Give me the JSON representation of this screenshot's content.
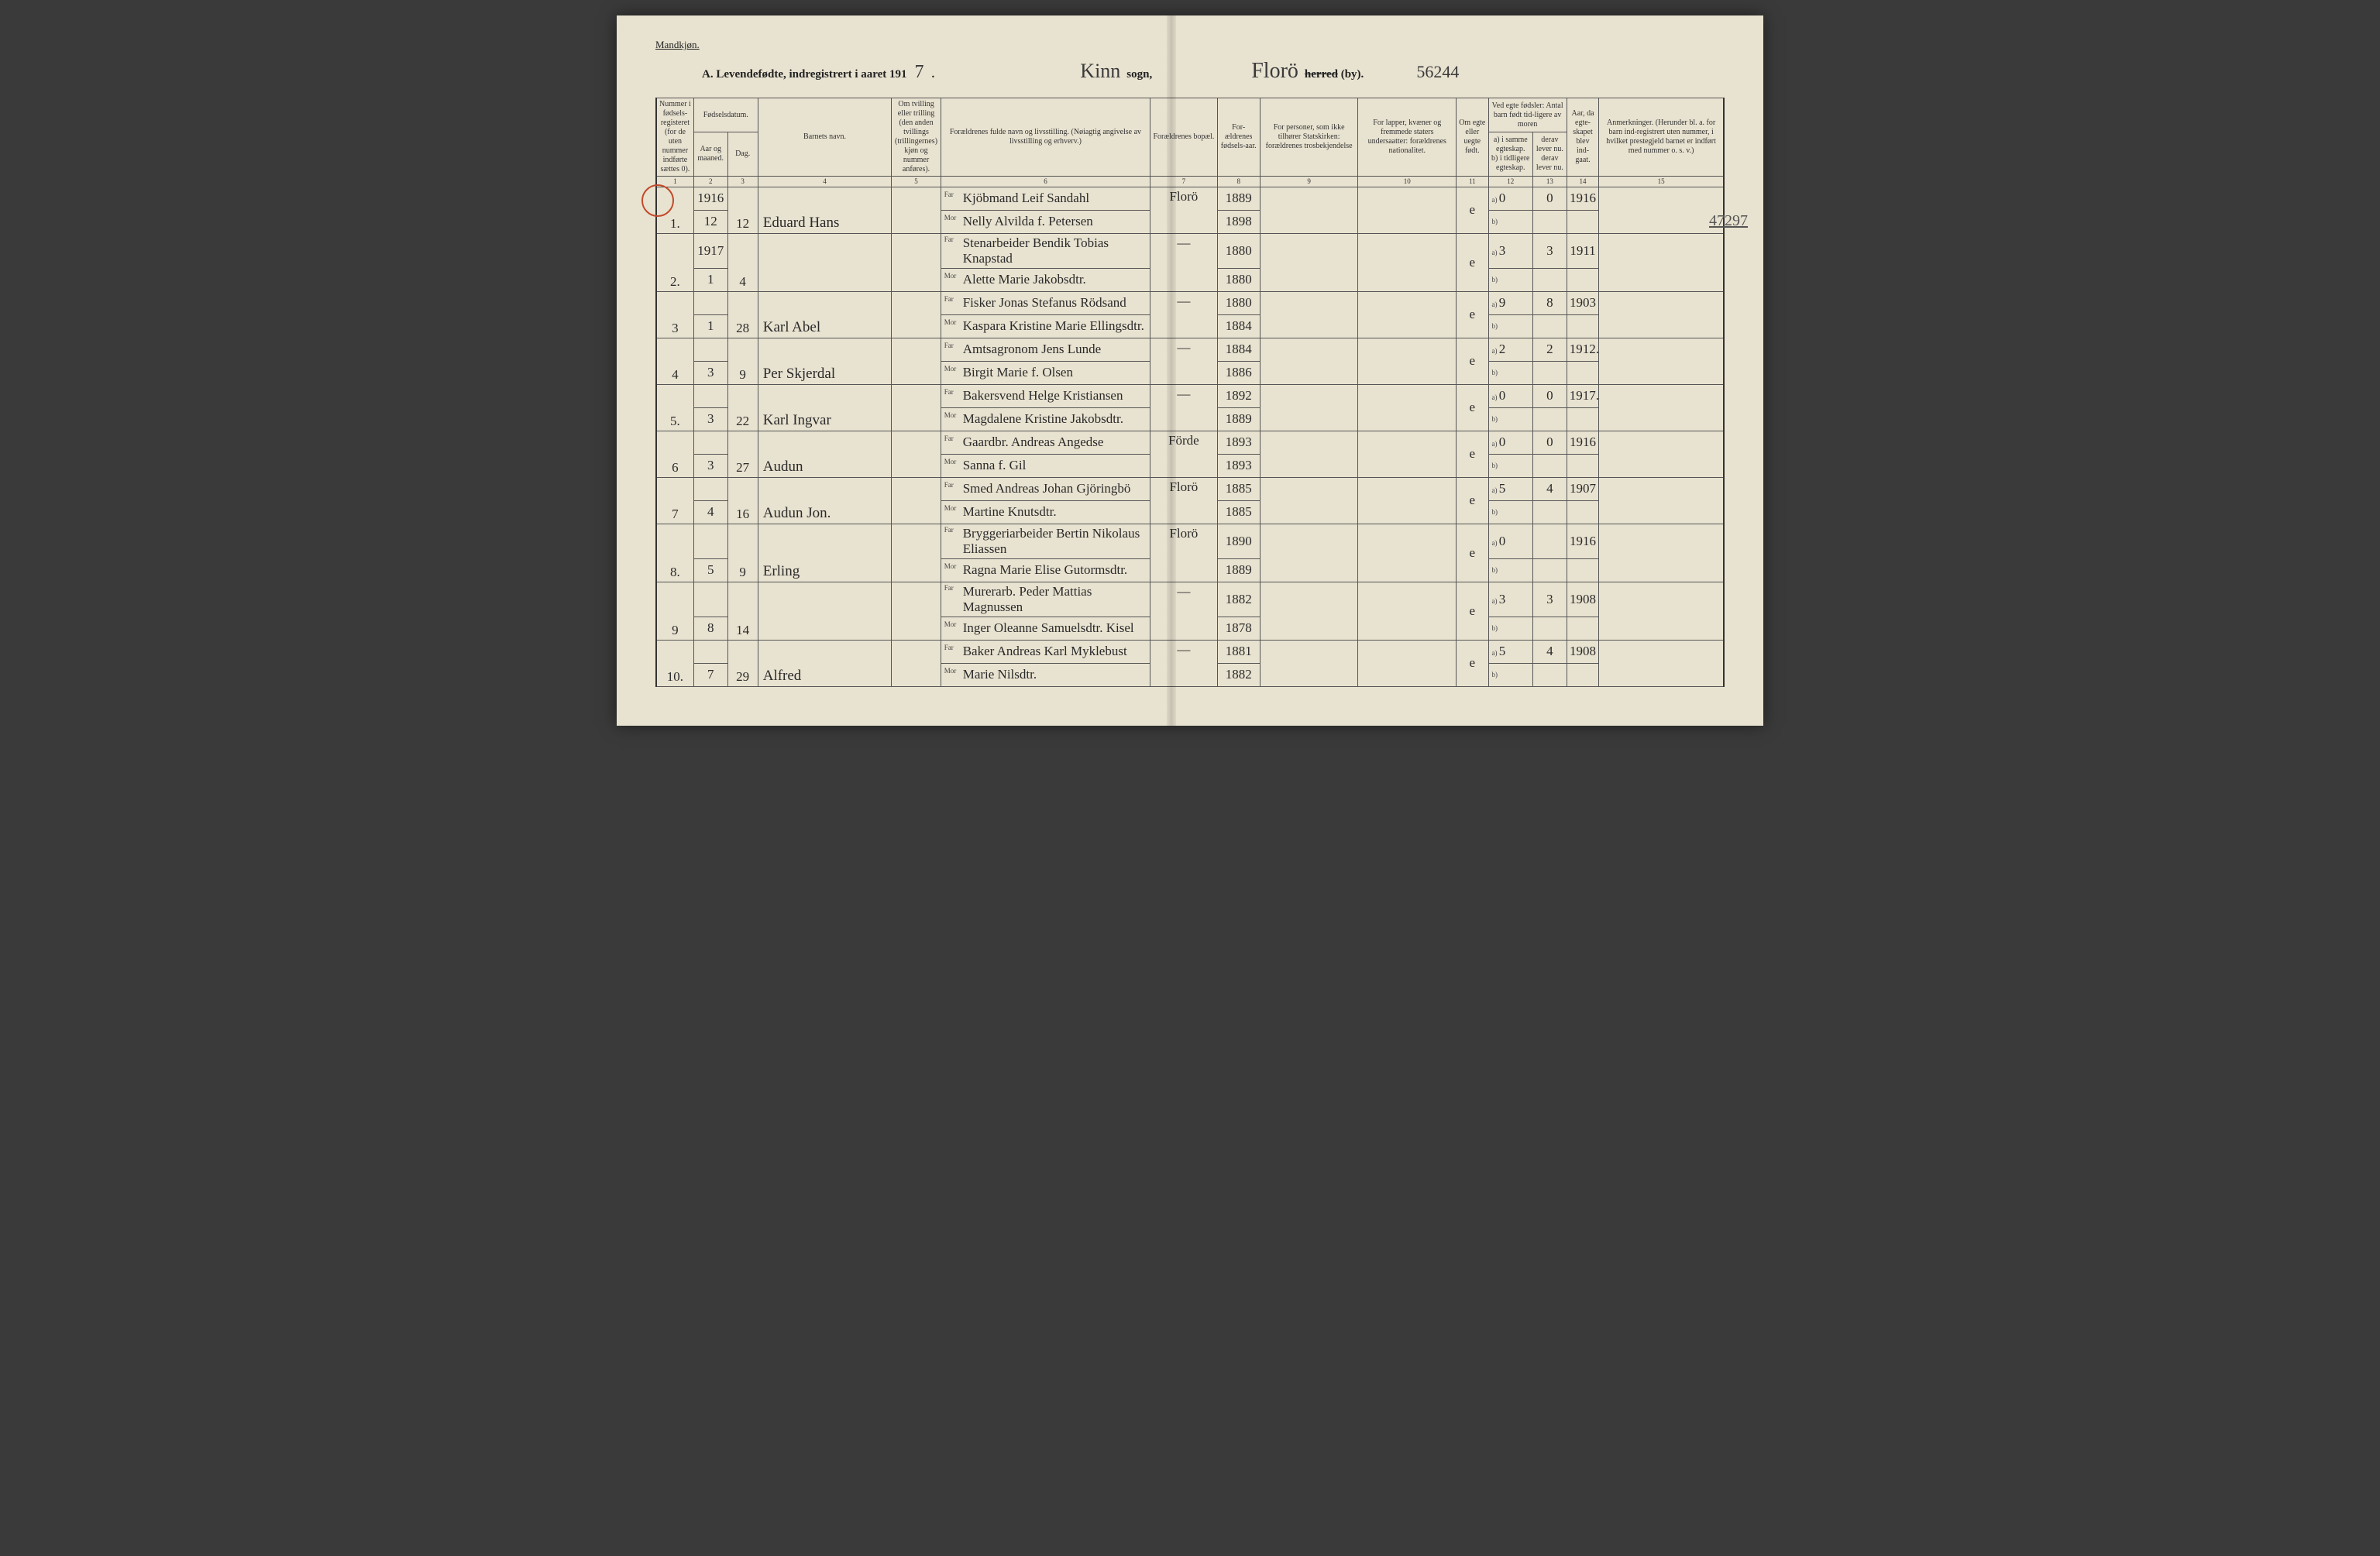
{
  "header": {
    "gender": "Mandkjøn.",
    "title_prefix": "A.  Levendefødte, indregistrert i aaret 191",
    "year_suffix": "7",
    "sogn_label": "sogn,",
    "sogn_value": "Kinn",
    "herred_label_struck": "herred",
    "herred_label_by": "(by).",
    "herred_value": "Florö",
    "page_number": "56244",
    "margin_number": "47297"
  },
  "columns": {
    "c1": "Nummer i fødsels-registeret (for de uten nummer indførte sættes 0).",
    "c2_top": "Fødselsdatum.",
    "c2": "Aar og maaned.",
    "c3": "Dag.",
    "c4": "Barnets navn.",
    "c5": "Om tvilling eller trilling (den anden tvillings (trillingernes) kjøn og nummer anføres).",
    "c6": "Forældrenes fulde navn og livsstilling. (Nøiagtig angivelse av livsstilling og erhverv.)",
    "c6_far": "Far",
    "c6_mor": "Mor",
    "c7": "Forældrenes bopæl.",
    "c8": "For-ældrenes fødsels-aar.",
    "c9": "For personer, som ikke tilhører Statskirken: forældrenes trosbekjendelse",
    "c10": "For lapper, kvæner og fremmede staters undersaatter: forældrenes nationalitet.",
    "c11": "Om egte eller uegte født.",
    "c12_top": "Ved egte fødsler: Antal barn født tid-ligere av moren",
    "c12a": "a) i samme egteskap.",
    "c12b": "b) i tidligere egteskap.",
    "c13": "derav lever nu.",
    "c13b": "derav lever nu.",
    "c14": "Aar, da egte-skapet blev ind-gaat.",
    "c15": "Anmerkninger. (Herunder bl. a. for barn ind-registrert uten nummer, i hvilket prestegjeld barnet er indført med nummer o. s. v.)",
    "nums": [
      "1",
      "2",
      "3",
      "4",
      "5",
      "6",
      "7",
      "8",
      "9",
      "10",
      "11",
      "12",
      "13",
      "14",
      "15"
    ]
  },
  "rows": [
    {
      "num": "1.",
      "year": "1916",
      "month": "12",
      "day": "12",
      "name": "Eduard Hans",
      "far": "Kjöbmand Leif Sandahl",
      "mor": "Nelly Alvilda f. Petersen",
      "bopel": "Florö",
      "far_aar": "1889",
      "mor_aar": "1898",
      "egte": "e",
      "a": "0",
      "lev": "0",
      "egt_aar": "1916"
    },
    {
      "num": "2.",
      "year": "1917",
      "month": "1",
      "day": "4",
      "name": "",
      "far": "Stenarbeider Bendik Tobias Knapstad",
      "mor": "Alette Marie Jakobsdtr.",
      "bopel": "—",
      "far_aar": "1880",
      "mor_aar": "1880",
      "egte": "e",
      "a": "3",
      "lev": "3",
      "egt_aar": "1911"
    },
    {
      "num": "3",
      "year": "",
      "month": "1",
      "day": "28",
      "name": "Karl Abel",
      "far": "Fisker Jonas Stefanus Rödsand",
      "mor": "Kaspara Kristine Marie Ellingsdtr.",
      "bopel": "—",
      "far_aar": "1880",
      "mor_aar": "1884",
      "egte": "e",
      "a": "9",
      "lev": "8",
      "egt_aar": "1903"
    },
    {
      "num": "4",
      "year": "",
      "month": "3",
      "day": "9",
      "name": "Per Skjerdal",
      "far": "Amtsagronom Jens Lunde",
      "mor": "Birgit Marie f. Olsen",
      "bopel": "—",
      "far_aar": "1884",
      "mor_aar": "1886",
      "egte": "e",
      "a": "2",
      "lev": "2",
      "egt_aar": "1912."
    },
    {
      "num": "5.",
      "year": "",
      "month": "3",
      "day": "22",
      "name": "Karl Ingvar",
      "far": "Bakersvend Helge Kristiansen",
      "mor": "Magdalene Kristine Jakobsdtr.",
      "bopel": "—",
      "far_aar": "1892",
      "mor_aar": "1889",
      "egte": "e",
      "a": "0",
      "lev": "0",
      "egt_aar": "1917."
    },
    {
      "num": "6",
      "year": "",
      "month": "3",
      "day": "27",
      "name": "Audun",
      "far": "Gaardbr. Andreas Angedse",
      "mor": "Sanna f. Gil",
      "bopel": "Förde",
      "far_aar": "1893",
      "mor_aar": "1893",
      "egte": "e",
      "a": "0",
      "lev": "0",
      "egt_aar": "1916"
    },
    {
      "num": "7",
      "year": "",
      "month": "4",
      "day": "16",
      "name": "Audun Jon.",
      "far": "Smed Andreas Johan Gjöringbö",
      "mor": "Martine Knutsdtr.",
      "bopel": "Florö",
      "far_aar": "1885",
      "mor_aar": "1885",
      "egte": "e",
      "a": "5",
      "lev": "4",
      "egt_aar": "1907"
    },
    {
      "num": "8.",
      "year": "",
      "month": "5",
      "day": "9",
      "name": "Erling",
      "far": "Bryggeriarbeider Bertin Nikolaus Eliassen",
      "mor": "Ragna Marie Elise Gutormsdtr.",
      "bopel": "Florö",
      "far_aar": "1890",
      "mor_aar": "1889",
      "egte": "e",
      "a": "0",
      "lev": "",
      "egt_aar": "1916"
    },
    {
      "num": "9",
      "year": "",
      "month": "8",
      "day": "14",
      "name": "",
      "far": "Murerarb. Peder Mattias Magnussen",
      "mor": "Inger Oleanne Samuelsdtr. Kisel",
      "bopel": "—",
      "far_aar": "1882",
      "mor_aar": "1878",
      "egte": "e",
      "a": "3",
      "lev": "3",
      "egt_aar": "1908"
    },
    {
      "num": "10.",
      "year": "",
      "month": "7",
      "day": "29",
      "name": "Alfred",
      "far": "Baker Andreas Karl Myklebust",
      "mor": "Marie Nilsdtr.",
      "bopel": "—",
      "far_aar": "1881",
      "mor_aar": "1882",
      "egte": "e",
      "a": "5",
      "lev": "4",
      "egt_aar": "1908"
    }
  ],
  "styling": {
    "page_bg": "#e8e2d0",
    "border_color": "#555",
    "cursive_color": "#2a2a2a",
    "circle_color": "#c24a2a",
    "print_color": "#333"
  }
}
